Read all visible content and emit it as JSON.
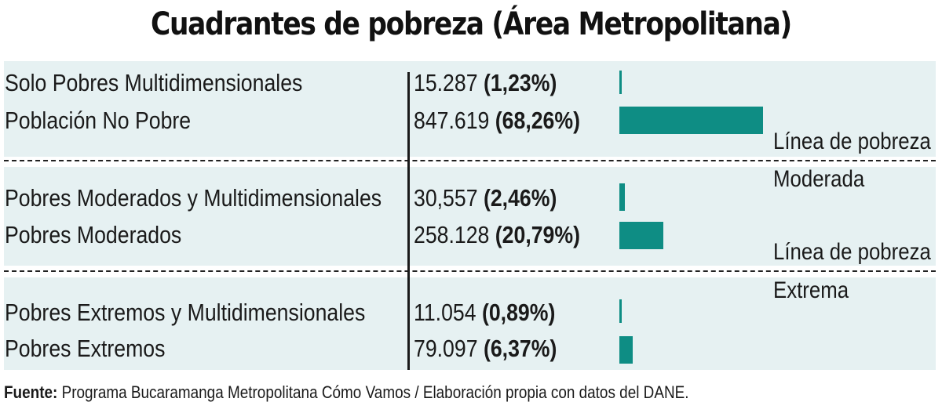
{
  "title": "Cuadrantes de pobreza (Área Metropolitana)",
  "source": {
    "prefix": "Fuente:",
    "text": " Programa Bucaramanga Metropolitana Cómo Vamos / Elaboración propia con datos del DANE."
  },
  "thresholds": [
    {
      "line1": "Línea de pobreza",
      "line2": "Moderada"
    },
    {
      "line1": "Línea de pobreza",
      "line2": "Extrema"
    }
  ],
  "rows": [
    {
      "label": "Solo Pobres Multidimensionales",
      "value": "15.287",
      "pct": "(1,23%)"
    },
    {
      "label": "Población No Pobre",
      "value": "847.619",
      "pct": "(68,26%)"
    },
    {
      "label": "Pobres Moderados y Multidimensionales",
      "value": "30,557",
      "pct": "(2,46%)"
    },
    {
      "label": "Pobres Moderados",
      "value": "258.128",
      "pct": "(20,79%)"
    },
    {
      "label": "Pobres Extremos y Multidimensionales",
      "value": "11.054",
      "pct": "(0,89%)"
    },
    {
      "label": "Pobres Extremos",
      "value": "79.097",
      "pct": "(6,37%)"
    }
  ],
  "chart_data": {
    "type": "bar",
    "orientation": "horizontal",
    "title": "Cuadrantes de pobreza (Área Metropolitana)",
    "categories": [
      "Solo Pobres Multidimensionales",
      "Población No Pobre",
      "Pobres Moderados y Multidimensionales",
      "Pobres Moderados",
      "Pobres Extremos y Multidimensionales",
      "Pobres Extremos"
    ],
    "values": [
      15287,
      847619,
      30557,
      258128,
      11054,
      79097
    ],
    "percentages": [
      1.23,
      68.26,
      2.46,
      20.79,
      0.89,
      6.37
    ],
    "bar_color": "#0e8d84",
    "background_color": "#e6f1f2"
  }
}
